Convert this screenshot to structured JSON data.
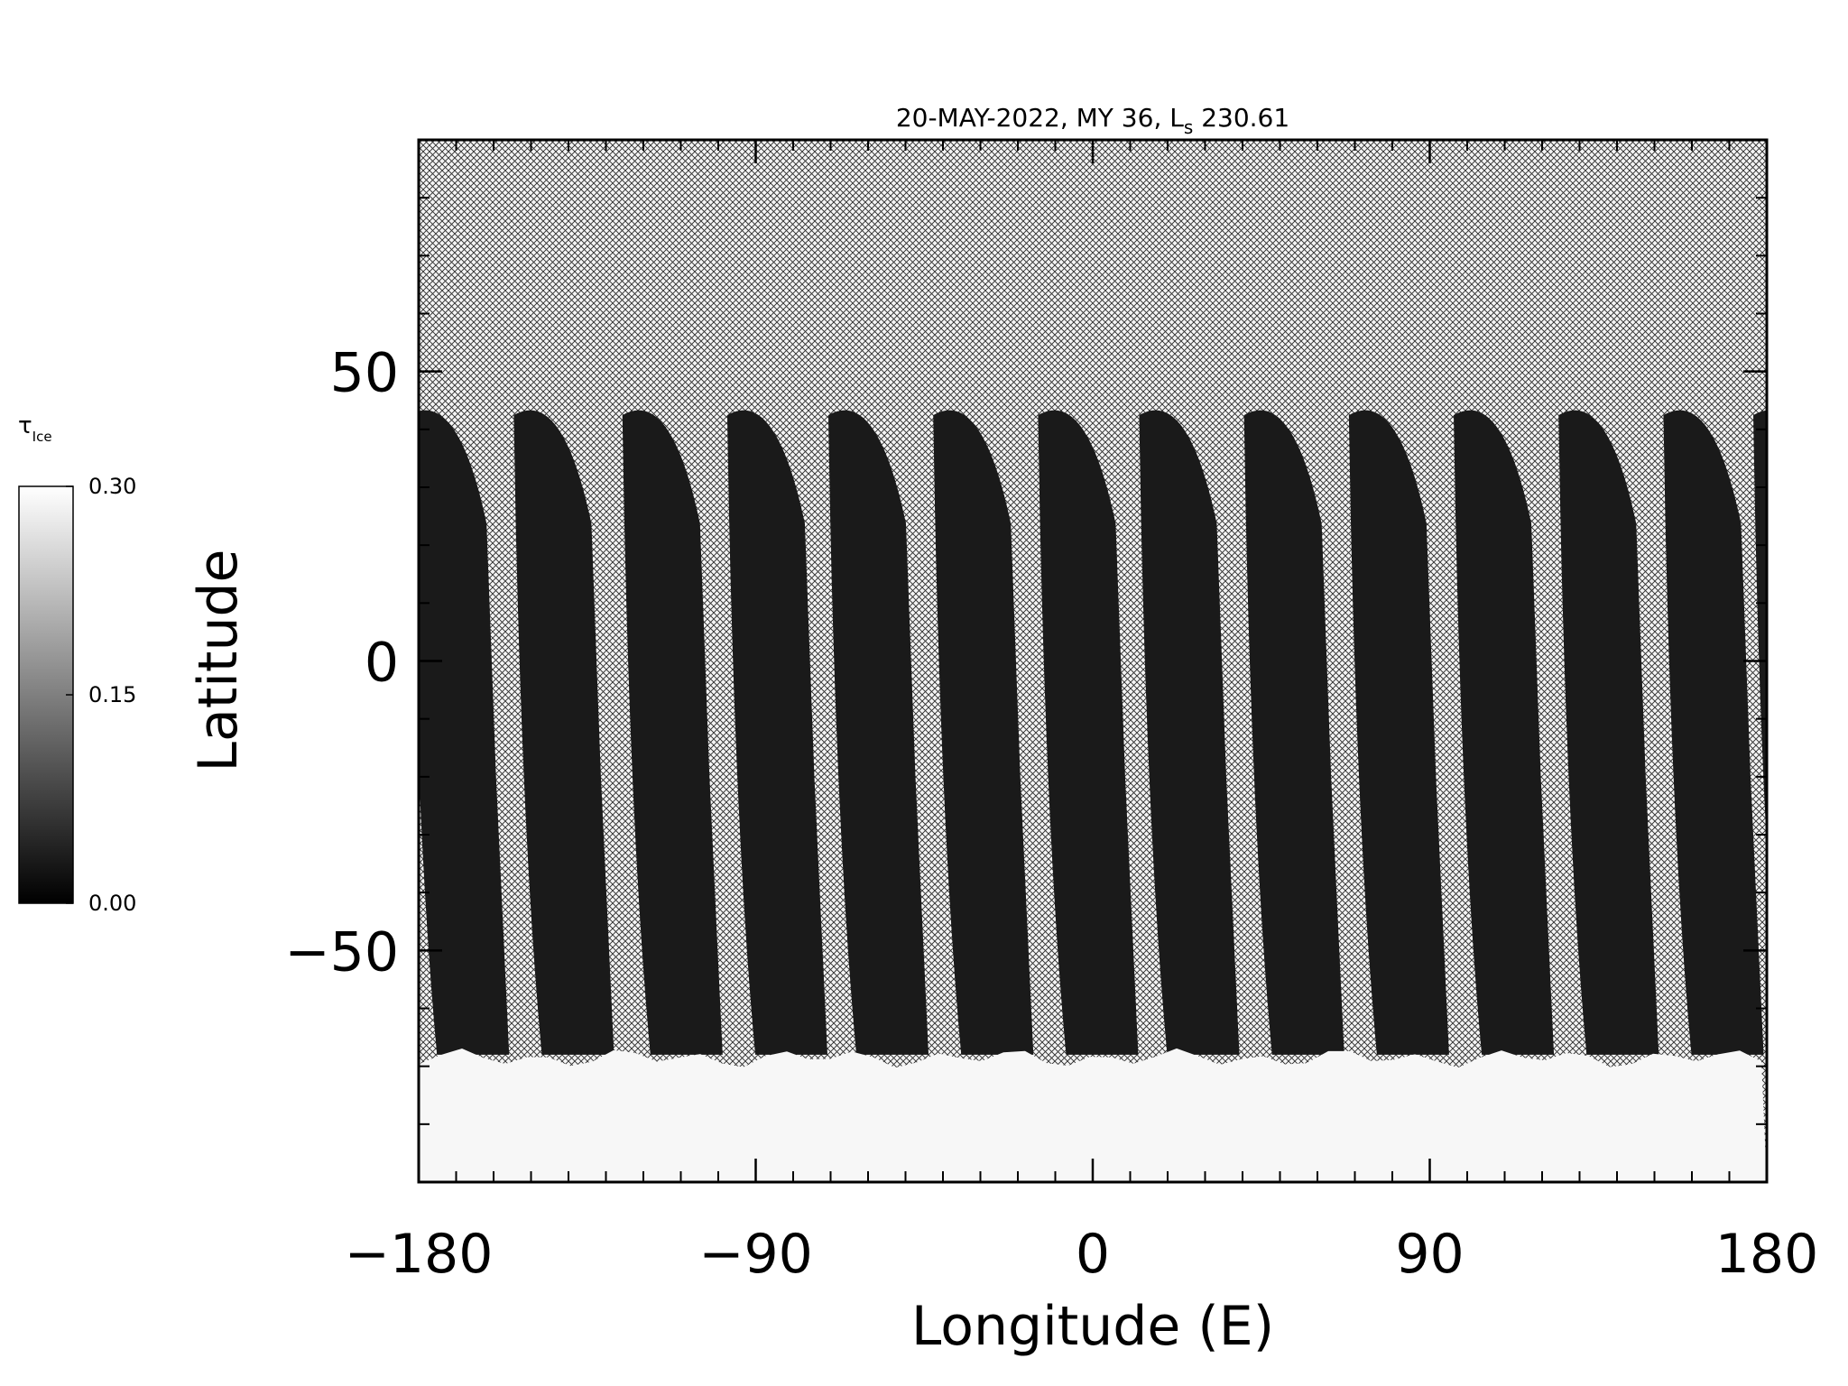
{
  "chart_data": {
    "type": "heatmap",
    "title": {
      "date": "20-MAY-2022",
      "mars_year": "MY 36",
      "ls_symbol": "L",
      "ls_subscript": "s",
      "ls_value": "230.61"
    },
    "xlabel": "Longitude (E)",
    "ylabel": "Latitude",
    "xlim": [
      -180,
      180
    ],
    "ylim": [
      -90,
      90
    ],
    "x_ticks": [
      -180,
      -90,
      0,
      90,
      180
    ],
    "x_tick_labels": [
      "−180",
      "−90",
      "0",
      "90",
      "180"
    ],
    "y_ticks": [
      -50,
      0,
      50
    ],
    "y_tick_labels": [
      "−50",
      "0",
      "50"
    ],
    "x_minor_step": 10,
    "y_minor_step": 10,
    "colorbar": {
      "label_symbol": "τ",
      "label_subscript": "Ice",
      "range": [
        0.0,
        0.3
      ],
      "colormap": "grayscale",
      "ticks": [
        0.0,
        0.15,
        0.3
      ],
      "tick_labels": [
        "0.00",
        "0.15",
        "0.30"
      ],
      "low_color": "#000000",
      "high_color": "#ffffff"
    },
    "no_data_pattern": "crosshatch",
    "swaths": {
      "count": 14,
      "center_lons": [
        -172,
        -144,
        -115,
        -87,
        -60,
        -32,
        -4,
        23,
        51,
        79,
        107,
        135,
        163,
        187
      ],
      "lat_top": 44,
      "lat_bottom": -68,
      "tilt_deg": 7,
      "mean_value": 0.03
    },
    "polar_region": {
      "lat_top": -68,
      "lat_bottom": -90,
      "mean_value": 0.29
    }
  }
}
